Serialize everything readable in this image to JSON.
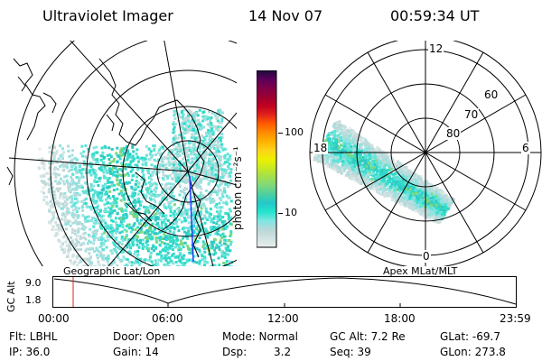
{
  "header": {
    "title": "Ultraviolet Imager",
    "date": "14 Nov 07",
    "time": "00:59:34 UT"
  },
  "colorbar": {
    "unit_label": "photon cm⁻²s⁻¹",
    "tick_labels": [
      "100",
      "10"
    ],
    "stops": [
      "#e7eeee",
      "#d2e2e2",
      "#b9d8d8",
      "#7fe6e2",
      "#24e4cc",
      "#22c9c9",
      "#4fcfa0",
      "#7fd87a",
      "#a3e04b",
      "#c9ea1f",
      "#eef000",
      "#ffd21a",
      "#ffb000",
      "#ff8a00",
      "#ff5a00",
      "#e0221c",
      "#c00020",
      "#9c0031",
      "#7f0047",
      "#5a005a",
      "#1c0b3c"
    ]
  },
  "left_panel": {
    "caption": "Geographic Lat/Lon"
  },
  "right_panel": {
    "caption": "Apex MLat/MLT",
    "lat_labels": [
      "80",
      "70",
      "60"
    ],
    "mlt_labels": {
      "top": "12",
      "left": "18",
      "right": "6",
      "bottom": "0"
    }
  },
  "timeline": {
    "ylabel": "GC Alt",
    "y_ticks": [
      "9.0",
      "1.8"
    ],
    "x_ticks": [
      "00:00",
      "06:00",
      "12:00",
      "18:00",
      "23:59"
    ],
    "marker_color": "#e0221c"
  },
  "status": {
    "flt": "Flt: LBHL",
    "ip": "IP: 36.0",
    "door": "Door: Open",
    "gain": "Gain: 14",
    "mode": "Mode: Normal",
    "dsp_label": "Dsp:",
    "dsp_value": "3.2",
    "gc_alt": "GC Alt: 7.2 Re",
    "seq": "Seq: 39",
    "glat": "GLat: -69.7",
    "glon": "GLon: 273.8"
  }
}
